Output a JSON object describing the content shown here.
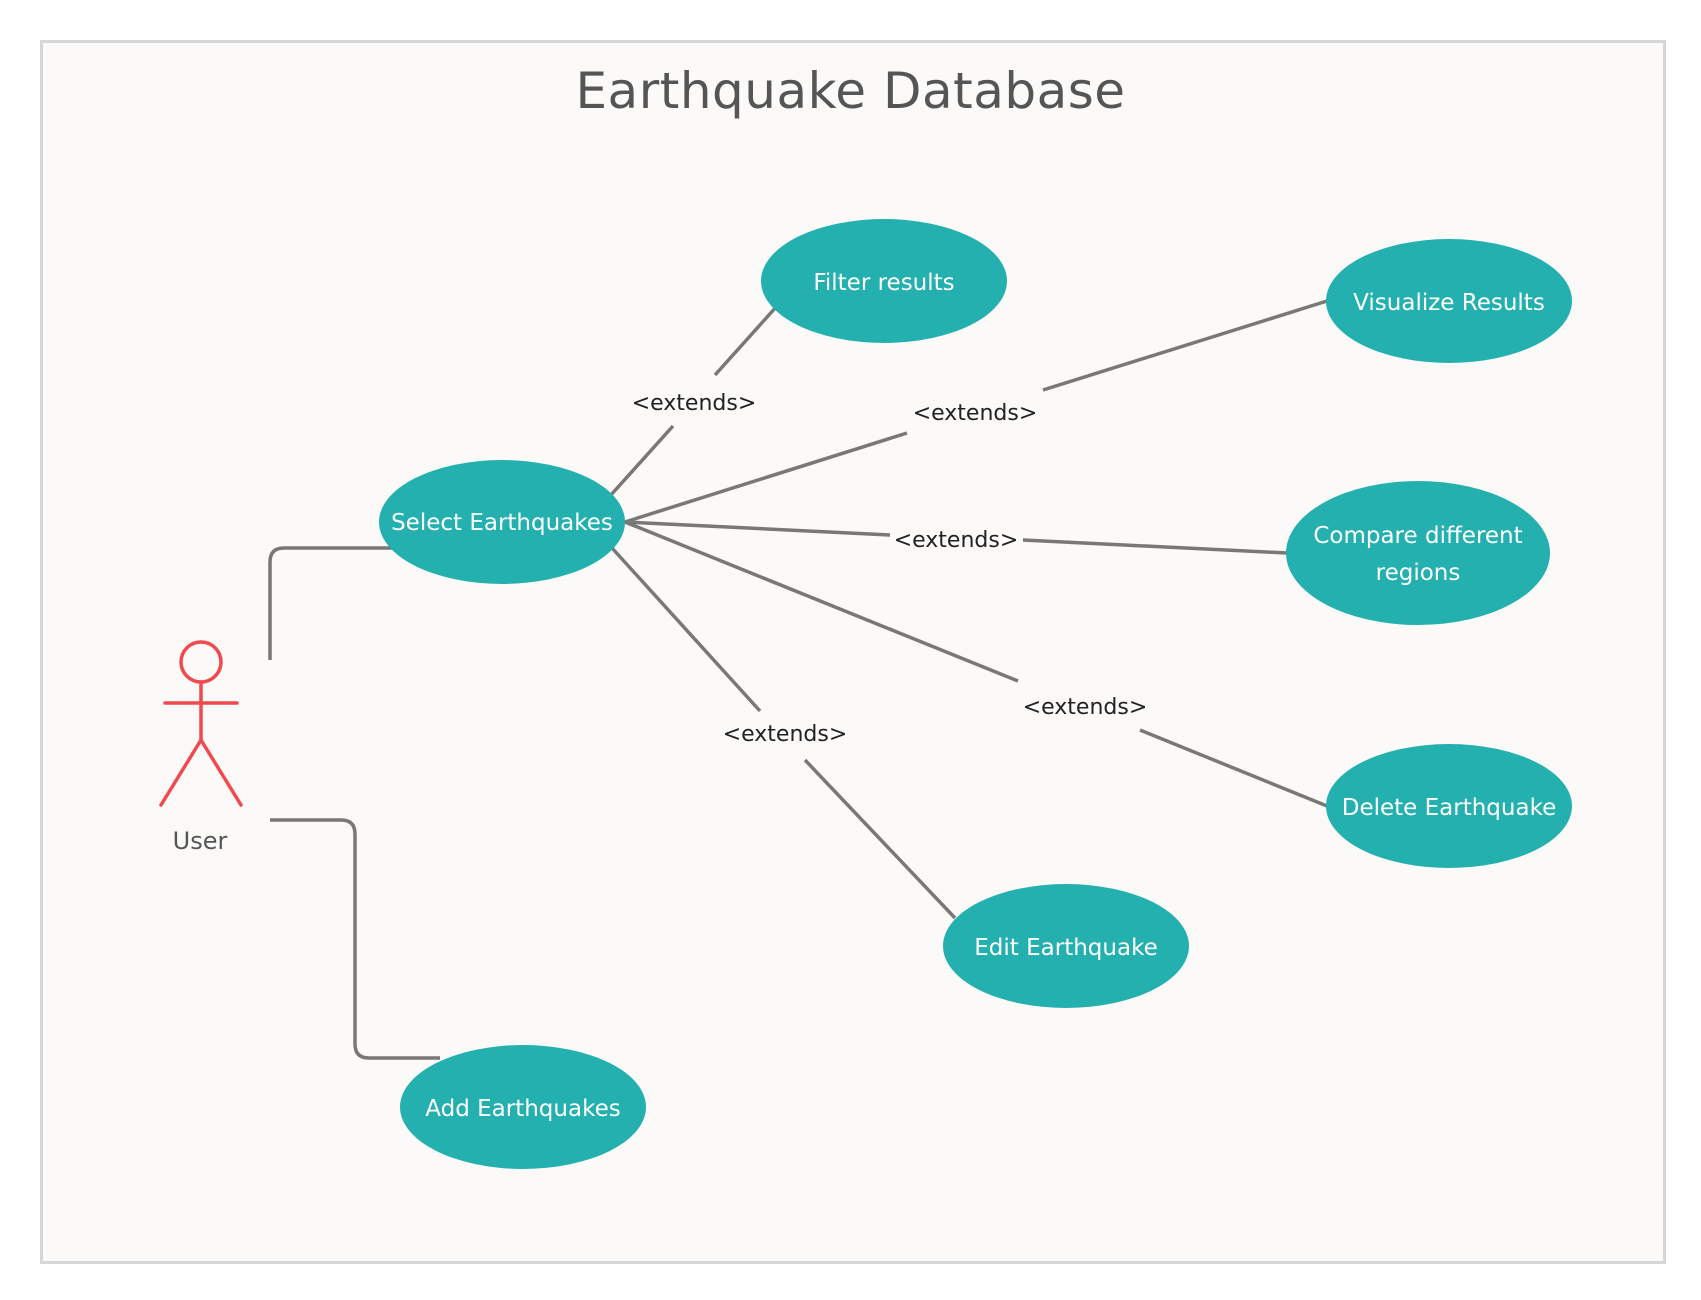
{
  "diagram": {
    "title": "Earthquake Database",
    "actor": {
      "label": "User",
      "color": "#f04a4f"
    },
    "colors": {
      "use_case_fill": "#25b0b0",
      "connector": "#7a7876",
      "frame_border": "#d6d6d6",
      "background": "#fbfaf9"
    },
    "use_cases": {
      "select": "Select Earthquakes",
      "filter": "Filter results",
      "visualize": "Visualize Results",
      "compare_line1": "Compare different",
      "compare_line2": "regions",
      "delete": "Delete Earthquake",
      "edit": "Edit Earthquake",
      "add": "Add Earthquakes"
    },
    "relationship_label": "<extends>"
  }
}
